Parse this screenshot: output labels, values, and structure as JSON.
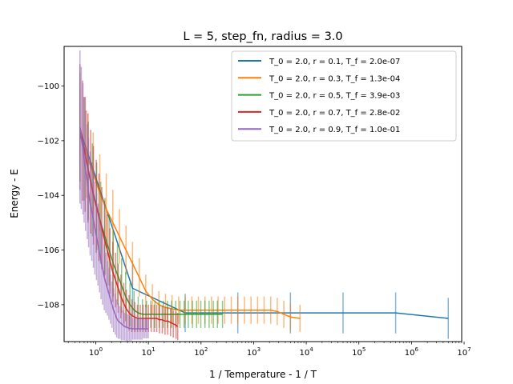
{
  "chart_data": {
    "type": "line",
    "title": "L = 5, step_fn, radius = 3.0",
    "xlabel": "1 / Temperature - 1 / T",
    "ylabel": "Energy - E",
    "xscale": "log",
    "xlim": [
      0.25,
      9000000
    ],
    "ylim": [
      -109.35,
      -98.55
    ],
    "x_ticks": [
      {
        "value": 1,
        "base": "10",
        "exp": "0"
      },
      {
        "value": 10,
        "base": "10",
        "exp": "1"
      },
      {
        "value": 100,
        "base": "10",
        "exp": "2"
      },
      {
        "value": 1000,
        "base": "10",
        "exp": "3"
      },
      {
        "value": 10000,
        "base": "10",
        "exp": "4"
      },
      {
        "value": 100000,
        "base": "10",
        "exp": "5"
      },
      {
        "value": 1000000,
        "base": "10",
        "exp": "6"
      },
      {
        "value": 10000000,
        "base": "10",
        "exp": "7"
      }
    ],
    "y_ticks": [
      {
        "value": -100,
        "label": "−100"
      },
      {
        "value": -102,
        "label": "−102"
      },
      {
        "value": -104,
        "label": "−104"
      },
      {
        "value": -106,
        "label": "−106"
      },
      {
        "value": -108,
        "label": "−108"
      }
    ],
    "grid": false,
    "legend_position": "top-right",
    "series": [
      {
        "name": "T_0 = 2.0, r = 0.1, T_f = 2.0e-07",
        "color": "#1f77b4",
        "x": [
          0.5,
          5,
          50,
          500,
          5000,
          50000,
          500000,
          5000000
        ],
        "y": [
          -101.6,
          -107.4,
          -108.3,
          -108.3,
          -108.3,
          -108.3,
          -108.3,
          -108.5
        ],
        "err": [
          1.0,
          1.0,
          0.7,
          0.75,
          0.75,
          0.75,
          0.75,
          0.75
        ]
      },
      {
        "name": "T_0 = 2.0, r = 0.3, T_f = 1.3e-04",
        "color": "#ff7f0e",
        "x": [
          0.5,
          0.67,
          0.89,
          1.19,
          1.58,
          2.11,
          2.81,
          3.75,
          5,
          6.7,
          8.9,
          11.9,
          15.8,
          21.1,
          28.1,
          37.5,
          50,
          67,
          89,
          119,
          158,
          211,
          281,
          375,
          500,
          670,
          890,
          1190,
          1580,
          2110,
          2810,
          3750,
          5000,
          7600
        ],
        "y": [
          -101.8,
          -102.5,
          -103.2,
          -103.9,
          -104.5,
          -105.0,
          -105.5,
          -106.0,
          -106.5,
          -107.0,
          -107.5,
          -107.8,
          -108.0,
          -108.1,
          -108.15,
          -108.2,
          -108.2,
          -108.2,
          -108.2,
          -108.2,
          -108.2,
          -108.2,
          -108.2,
          -108.2,
          -108.2,
          -108.2,
          -108.2,
          -108.2,
          -108.2,
          -108.2,
          -108.25,
          -108.35,
          -108.45,
          -108.5
        ],
        "err": [
          1.7,
          1.6,
          1.5,
          1.4,
          1.3,
          1.2,
          1.0,
          0.9,
          0.8,
          0.7,
          0.6,
          0.55,
          0.5,
          0.5,
          0.5,
          0.5,
          0.5,
          0.5,
          0.5,
          0.5,
          0.5,
          0.5,
          0.5,
          0.5,
          0.5,
          0.5,
          0.5,
          0.5,
          0.5,
          0.5,
          0.5,
          0.5,
          0.5,
          0.5
        ]
      },
      {
        "name": "T_0 = 2.0, r = 0.5, T_f = 3.9e-03",
        "color": "#2ca02c",
        "x": [
          0.5,
          0.6,
          0.72,
          0.86,
          1.04,
          1.24,
          1.49,
          1.79,
          2.15,
          2.58,
          3.1,
          3.7,
          4.46,
          5.35,
          6.4,
          7.7,
          9.2,
          11.1,
          13.3,
          16,
          19.2,
          23,
          27.6,
          33.1,
          39.8,
          47.7,
          57.3,
          68.7,
          82.4,
          98.9,
          118.7,
          142.5,
          171,
          205,
          256
        ],
        "y": [
          -101.5,
          -102.3,
          -103.1,
          -103.8,
          -104.4,
          -105.0,
          -105.5,
          -106.0,
          -106.5,
          -106.9,
          -107.3,
          -107.7,
          -108.0,
          -108.2,
          -108.3,
          -108.35,
          -108.35,
          -108.35,
          -108.35,
          -108.35,
          -108.35,
          -108.35,
          -108.35,
          -108.35,
          -108.35,
          -108.35,
          -108.35,
          -108.35,
          -108.35,
          -108.35,
          -108.35,
          -108.35,
          -108.35,
          -108.35,
          -108.35
        ],
        "err": [
          2.0,
          1.9,
          1.8,
          1.7,
          1.6,
          1.5,
          1.4,
          1.3,
          1.2,
          1.1,
          1.0,
          0.9,
          0.8,
          0.7,
          0.6,
          0.55,
          0.5,
          0.5,
          0.5,
          0.5,
          0.5,
          0.5,
          0.5,
          0.5,
          0.5,
          0.5,
          0.5,
          0.5,
          0.5,
          0.5,
          0.5,
          0.5,
          0.5,
          0.5,
          0.5
        ]
      },
      {
        "name": "T_0 = 2.0, r = 0.7, T_f = 2.8e-02",
        "color": "#d62728",
        "x": [
          0.5,
          0.56,
          0.63,
          0.71,
          0.8,
          0.9,
          1.02,
          1.15,
          1.3,
          1.46,
          1.65,
          1.86,
          2.1,
          2.37,
          2.67,
          3.0,
          3.4,
          3.8,
          4.3,
          4.85,
          5.5,
          6.2,
          7.0,
          7.9,
          8.9,
          10,
          11.3,
          12.8,
          14.4,
          16.2,
          18.3,
          20.7,
          23.3,
          26.3,
          29.7,
          33.5,
          36
        ],
        "y": [
          -101.5,
          -102.0,
          -102.5,
          -103.0,
          -103.5,
          -104.0,
          -104.4,
          -104.8,
          -105.2,
          -105.6,
          -106.0,
          -106.4,
          -106.8,
          -107.1,
          -107.4,
          -107.7,
          -107.95,
          -108.15,
          -108.3,
          -108.4,
          -108.45,
          -108.5,
          -108.5,
          -108.5,
          -108.5,
          -108.5,
          -108.5,
          -108.5,
          -108.5,
          -108.55,
          -108.55,
          -108.6,
          -108.6,
          -108.65,
          -108.7,
          -108.75,
          -108.8
        ],
        "err": [
          2.3,
          2.2,
          2.1,
          2.0,
          1.9,
          1.8,
          1.7,
          1.6,
          1.5,
          1.4,
          1.3,
          1.2,
          1.1,
          1.0,
          0.9,
          0.8,
          0.75,
          0.7,
          0.65,
          0.6,
          0.55,
          0.5,
          0.5,
          0.5,
          0.5,
          0.5,
          0.5,
          0.5,
          0.5,
          0.5,
          0.5,
          0.5,
          0.5,
          0.5,
          0.5,
          0.5,
          0.5
        ]
      },
      {
        "name": "T_0 = 2.0, r = 0.9, T_f = 1.0e-01",
        "color": "#9467bd",
        "x": [
          0.5,
          0.53,
          0.57,
          0.6,
          0.64,
          0.69,
          0.73,
          0.78,
          0.84,
          0.9,
          0.96,
          1.03,
          1.1,
          1.18,
          1.26,
          1.35,
          1.45,
          1.55,
          1.66,
          1.78,
          1.9,
          2.04,
          2.18,
          2.34,
          2.5,
          2.68,
          2.87,
          3.08,
          3.3,
          3.53,
          3.78,
          4.05,
          4.34,
          4.65,
          4.98,
          5.33,
          5.71,
          6.12,
          6.55,
          7.02,
          7.52,
          8.05,
          8.62,
          9.24,
          9.9
        ],
        "y": [
          -101.5,
          -101.9,
          -102.3,
          -102.7,
          -103.1,
          -103.5,
          -103.9,
          -104.3,
          -104.6,
          -104.9,
          -105.2,
          -105.5,
          -105.8,
          -106.1,
          -106.4,
          -106.7,
          -107.0,
          -107.2,
          -107.4,
          -107.6,
          -107.8,
          -108.0,
          -108.2,
          -108.35,
          -108.5,
          -108.6,
          -108.65,
          -108.7,
          -108.75,
          -108.8,
          -108.82,
          -108.84,
          -108.86,
          -108.87,
          -108.88,
          -108.88,
          -108.88,
          -108.88,
          -108.88,
          -108.88,
          -108.88,
          -108.88,
          -108.88,
          -108.88,
          -108.88
        ],
        "err": [
          2.8,
          2.6,
          2.4,
          2.3,
          2.2,
          2.1,
          2.0,
          1.9,
          1.8,
          1.75,
          1.7,
          1.6,
          1.5,
          1.45,
          1.4,
          1.3,
          1.2,
          1.1,
          1.0,
          0.95,
          0.9,
          0.85,
          0.8,
          0.75,
          0.7,
          0.65,
          0.6,
          0.6,
          0.55,
          0.5,
          0.5,
          0.5,
          0.45,
          0.45,
          0.4,
          0.4,
          0.4,
          0.4,
          0.4,
          0.4,
          0.4,
          0.35,
          0.35,
          0.35,
          0.35
        ]
      }
    ]
  }
}
